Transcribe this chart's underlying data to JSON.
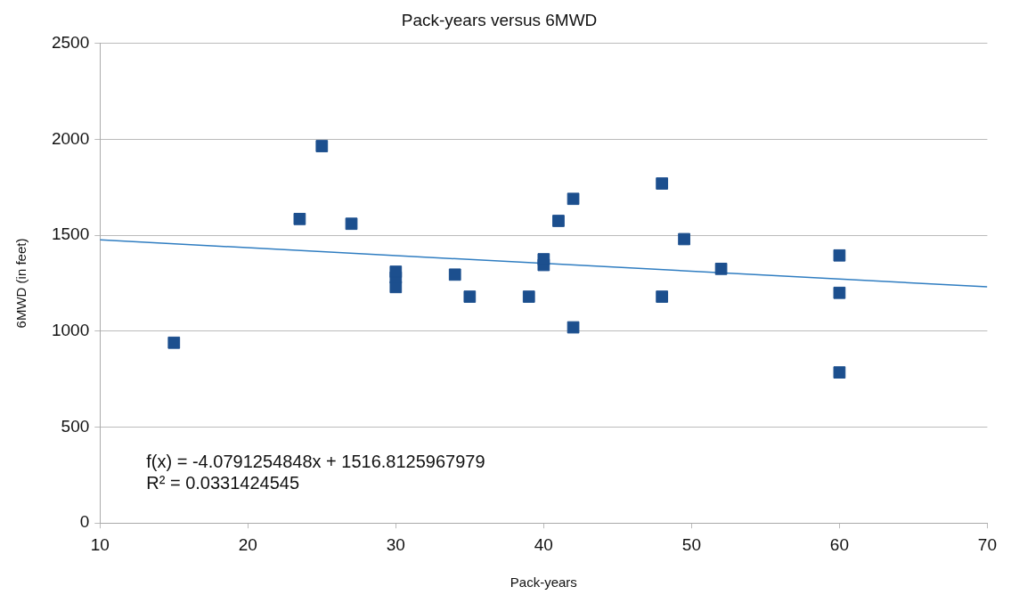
{
  "chart_data": {
    "type": "scatter",
    "title": "Pack-years versus 6MWD",
    "xlabel": "Pack-years",
    "ylabel": "6MWD (in feet)",
    "xlim": [
      10,
      70
    ],
    "xticks": [
      10,
      20,
      30,
      40,
      50,
      60,
      70
    ],
    "ylim": [
      0,
      2500
    ],
    "yticks": [
      0,
      500,
      1000,
      1500,
      2000,
      2500
    ],
    "grid": "y",
    "marker": "square",
    "series": [
      {
        "type": "scatter",
        "color": "#1c4f8e",
        "x": [
          15,
          23.5,
          25,
          27,
          30,
          30,
          30,
          34,
          35,
          39,
          40,
          40,
          41,
          42,
          42,
          48,
          48,
          49.5,
          52,
          60,
          60,
          60
        ],
        "values": [
          940,
          1585,
          1965,
          1560,
          1230,
          1280,
          1310,
          1295,
          1180,
          1180,
          1345,
          1375,
          1575,
          1690,
          1020,
          1770,
          1180,
          1480,
          1325,
          1395,
          1200,
          785
        ]
      },
      {
        "type": "line",
        "color": "#2f7dc1",
        "x": [
          10,
          70
        ],
        "values": [
          1476,
          1231
        ],
        "marker": "none"
      }
    ],
    "annotations": [
      "f(x) = -4.0791254848x + 1516.8125967979",
      "R² = 0.0331424545"
    ]
  }
}
